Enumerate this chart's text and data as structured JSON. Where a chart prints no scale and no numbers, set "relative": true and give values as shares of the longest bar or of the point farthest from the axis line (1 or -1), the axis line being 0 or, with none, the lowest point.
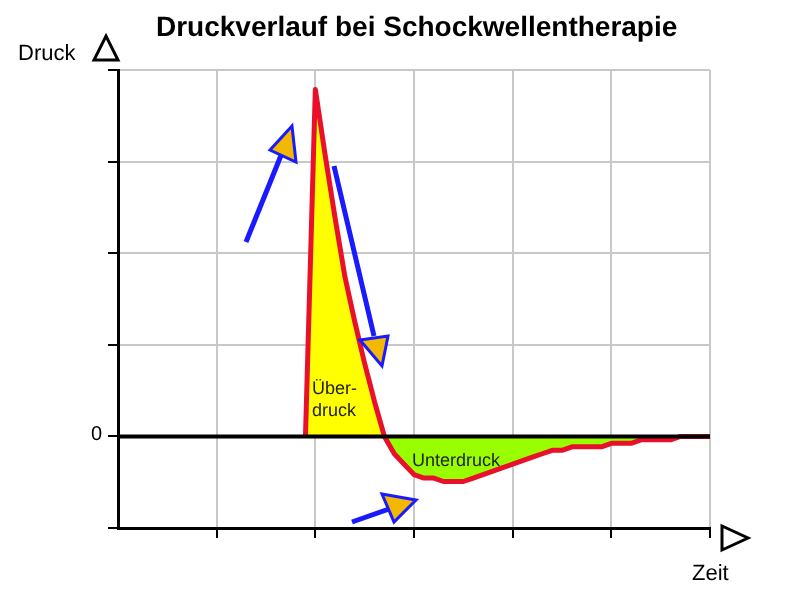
{
  "chart_data": {
    "type": "area",
    "title": "Druckverlauf bei Schockwellentherapie",
    "xlabel": "Zeit",
    "ylabel": "Druck",
    "relative": true,
    "grid": true,
    "legend": false,
    "color": "#e8102a",
    "annotations": [
      "Über-\ndruck",
      "Unterdruck"
    ],
    "ref_lines": [
      {
        "axis": "y",
        "value": 0,
        "label": "0",
        "color": "#000000"
      }
    ],
    "categories": [
      null,
      null,
      null,
      null,
      null,
      null,
      null,
      null,
      null,
      null,
      null,
      null,
      null,
      null,
      null,
      null,
      null,
      null,
      null,
      null,
      null,
      null,
      null,
      null,
      null,
      null,
      null,
      null,
      null,
      null,
      null,
      null,
      null,
      null,
      null,
      null,
      null,
      null,
      null,
      null,
      null,
      null,
      null,
      null,
      null,
      null,
      null,
      null,
      null,
      null,
      null,
      null,
      null,
      null,
      null,
      null,
      null,
      null,
      null,
      null,
      null
    ],
    "values": [
      null,
      null,
      null,
      null,
      null,
      null,
      null,
      null,
      null,
      null,
      null,
      null,
      null,
      null,
      null,
      null,
      null,
      null,
      null,
      0,
      1.0,
      0.81,
      0.63,
      0.46,
      0.33,
      0.21,
      0.1,
      0,
      -0.05,
      -0.08,
      -0.11,
      -0.12,
      -0.12,
      -0.13,
      -0.13,
      -0.13,
      -0.12,
      -0.11,
      -0.1,
      -0.09,
      -0.08,
      -0.07,
      -0.06,
      -0.05,
      -0.04,
      -0.04,
      -0.03,
      -0.03,
      -0.03,
      -0.03,
      -0.02,
      -0.02,
      -0.02,
      -0.01,
      -0.01,
      -0.01,
      -0.01,
      0,
      0,
      0,
      0
    ]
  }
}
